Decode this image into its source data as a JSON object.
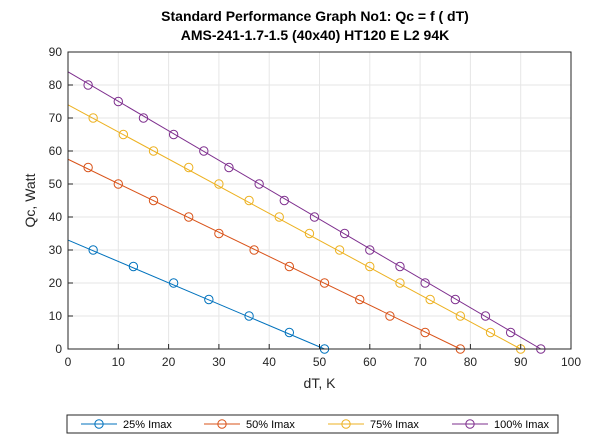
{
  "chart_data": {
    "type": "line",
    "title": "Standard Performance Graph No1: Qc = f ( dT)",
    "subtitle": "AMS-241-1.7-1.5 (40x40) HT120 E L2 94K",
    "xlabel": "dT, K",
    "ylabel": "Qc, Watt",
    "xlim": [
      0,
      100
    ],
    "ylim": [
      0,
      90
    ],
    "xticks": [
      0,
      10,
      20,
      30,
      40,
      50,
      60,
      70,
      80,
      90,
      100
    ],
    "yticks": [
      0,
      10,
      20,
      30,
      40,
      50,
      60,
      70,
      80,
      90
    ],
    "grid": true,
    "legend_position": "bottom-outside",
    "series": [
      {
        "name": "25% Imax",
        "color": "#0072BD",
        "line": [
          [
            0,
            33
          ],
          [
            51,
            0
          ]
        ],
        "markers": [
          [
            5,
            30
          ],
          [
            13,
            25
          ],
          [
            21,
            20
          ],
          [
            28,
            15
          ],
          [
            36,
            10
          ],
          [
            44,
            5
          ],
          [
            51,
            0
          ]
        ]
      },
      {
        "name": "50% Imax",
        "color": "#D95319",
        "line": [
          [
            0,
            57.5
          ],
          [
            78,
            0
          ]
        ],
        "markers": [
          [
            4,
            55
          ],
          [
            10,
            50
          ],
          [
            17,
            45
          ],
          [
            24,
            40
          ],
          [
            30,
            35
          ],
          [
            37,
            30
          ],
          [
            44,
            25
          ],
          [
            51,
            20
          ],
          [
            58,
            15
          ],
          [
            64,
            10
          ],
          [
            71,
            5
          ],
          [
            78,
            0
          ]
        ]
      },
      {
        "name": "75% Imax",
        "color": "#EDB120",
        "line": [
          [
            0,
            74
          ],
          [
            90,
            0
          ]
        ],
        "markers": [
          [
            5,
            70
          ],
          [
            11,
            65
          ],
          [
            17,
            60
          ],
          [
            24,
            55
          ],
          [
            30,
            50
          ],
          [
            36,
            45
          ],
          [
            42,
            40
          ],
          [
            48,
            35
          ],
          [
            54,
            30
          ],
          [
            60,
            25
          ],
          [
            66,
            20
          ],
          [
            72,
            15
          ],
          [
            78,
            10
          ],
          [
            84,
            5
          ],
          [
            90,
            0
          ]
        ]
      },
      {
        "name": "100% Imax",
        "color": "#7E2F8E",
        "line": [
          [
            0,
            84
          ],
          [
            94,
            0
          ]
        ],
        "markers": [
          [
            4,
            80
          ],
          [
            10,
            75
          ],
          [
            15,
            70
          ],
          [
            21,
            65
          ],
          [
            27,
            60
          ],
          [
            32,
            55
          ],
          [
            38,
            50
          ],
          [
            43,
            45
          ],
          [
            49,
            40
          ],
          [
            55,
            35
          ],
          [
            60,
            30
          ],
          [
            66,
            25
          ],
          [
            71,
            20
          ],
          [
            77,
            15
          ],
          [
            83,
            10
          ],
          [
            88,
            5
          ],
          [
            94,
            0
          ]
        ]
      }
    ]
  }
}
